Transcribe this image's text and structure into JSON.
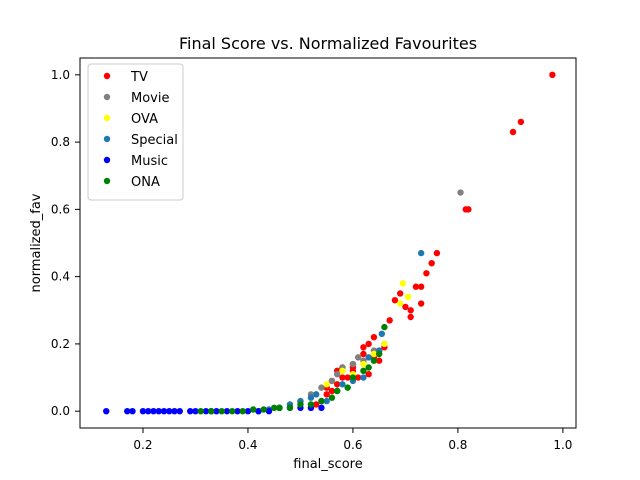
{
  "chart_data": {
    "type": "scatter",
    "title": "Final Score vs. Normalized Favourites",
    "xlabel": "final_score",
    "ylabel": "normalized_fav",
    "xlim": [
      0.08,
      1.025
    ],
    "ylim": [
      -0.05,
      1.05
    ],
    "x_ticks": [
      0.2,
      0.4,
      0.6,
      0.8,
      1.0
    ],
    "y_ticks": [
      0.0,
      0.2,
      0.4,
      0.6,
      0.8,
      1.0
    ],
    "grid": false,
    "legend_position": "top-left",
    "series": [
      {
        "name": "TV",
        "color": "#ff0000",
        "x": [
          0.52,
          0.53,
          0.54,
          0.55,
          0.56,
          0.57,
          0.58,
          0.58,
          0.59,
          0.6,
          0.6,
          0.61,
          0.62,
          0.62,
          0.63,
          0.64,
          0.64,
          0.65,
          0.66,
          0.67,
          0.68,
          0.69,
          0.7,
          0.71,
          0.71,
          0.72,
          0.73,
          0.73,
          0.74,
          0.75,
          0.76,
          0.815,
          0.82,
          0.905,
          0.92,
          0.98,
          0.55,
          0.56,
          0.57,
          0.6,
          0.63,
          0.65
        ],
        "y": [
          0.01,
          0.02,
          0.03,
          0.05,
          0.06,
          0.08,
          0.1,
          0.13,
          0.1,
          0.12,
          0.14,
          0.1,
          0.17,
          0.19,
          0.2,
          0.22,
          0.16,
          0.18,
          0.19,
          0.27,
          0.33,
          0.35,
          0.31,
          0.3,
          0.28,
          0.37,
          0.32,
          0.37,
          0.41,
          0.44,
          0.47,
          0.6,
          0.6,
          0.83,
          0.86,
          1.0,
          0.07,
          0.09,
          0.12,
          0.13,
          0.11,
          0.15
        ]
      },
      {
        "name": "Movie",
        "color": "#808080",
        "x": [
          0.5,
          0.52,
          0.54,
          0.56,
          0.57,
          0.58,
          0.6,
          0.61,
          0.62,
          0.64,
          0.66,
          0.805
        ],
        "y": [
          0.03,
          0.05,
          0.07,
          0.09,
          0.11,
          0.13,
          0.14,
          0.16,
          0.15,
          0.18,
          0.2,
          0.65
        ]
      },
      {
        "name": "OVA",
        "color": "#ffff00",
        "x": [
          0.48,
          0.5,
          0.53,
          0.55,
          0.58,
          0.6,
          0.62,
          0.64,
          0.66,
          0.69,
          0.695,
          0.705
        ],
        "y": [
          0.02,
          0.03,
          0.05,
          0.08,
          0.12,
          0.11,
          0.14,
          0.17,
          0.2,
          0.32,
          0.38,
          0.34
        ]
      },
      {
        "name": "Special",
        "color": "#1f77b4",
        "x": [
          0.42,
          0.44,
          0.46,
          0.48,
          0.5,
          0.52,
          0.53,
          0.55,
          0.57,
          0.58,
          0.6,
          0.62,
          0.63,
          0.65,
          0.655,
          0.73
        ],
        "y": [
          0.0,
          0.005,
          0.01,
          0.02,
          0.03,
          0.04,
          0.05,
          0.03,
          0.06,
          0.08,
          0.09,
          0.1,
          0.16,
          0.18,
          0.23,
          0.47
        ]
      },
      {
        "name": "Music",
        "color": "#0000ff",
        "x": [
          0.13,
          0.17,
          0.18,
          0.2,
          0.21,
          0.22,
          0.23,
          0.24,
          0.25,
          0.26,
          0.27,
          0.29,
          0.3,
          0.32,
          0.33,
          0.34,
          0.36,
          0.38,
          0.4,
          0.42,
          0.44,
          0.46,
          0.48,
          0.5,
          0.52,
          0.54
        ],
        "y": [
          0.0,
          0.0,
          0.0,
          0.0,
          0.0,
          0.0,
          0.0,
          0.0,
          0.0,
          0.0,
          0.0,
          0.0,
          0.0,
          0.0,
          0.0,
          0.0,
          0.0,
          0.0,
          0.0,
          0.0,
          0.0,
          0.01,
          0.01,
          0.01,
          0.01,
          0.01
        ]
      },
      {
        "name": "ONA",
        "color": "#008000",
        "x": [
          0.31,
          0.33,
          0.35,
          0.37,
          0.39,
          0.41,
          0.43,
          0.45,
          0.46,
          0.48,
          0.5,
          0.52,
          0.54,
          0.56,
          0.57,
          0.59,
          0.6,
          0.62,
          0.63,
          0.64,
          0.65,
          0.66
        ],
        "y": [
          0.0,
          0.0,
          0.0,
          0.0,
          0.0,
          0.005,
          0.005,
          0.01,
          0.01,
          0.01,
          0.02,
          0.02,
          0.03,
          0.04,
          0.06,
          0.07,
          0.1,
          0.12,
          0.13,
          0.15,
          0.17,
          0.25
        ]
      }
    ]
  }
}
